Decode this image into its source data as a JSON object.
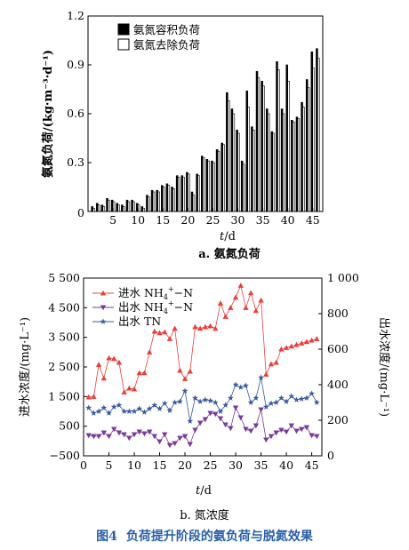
{
  "chart_data": [
    {
      "type": "bar",
      "caption": "a. 氨氮负荷",
      "xlabel_italic": "t",
      "xlabel_unit": "/d",
      "ylabel": "氨氮负荷/(kg·m⁻³·d⁻¹)",
      "ylim": [
        0,
        1.2
      ],
      "yticks": [
        0,
        0.3,
        0.6,
        0.9,
        1.2
      ],
      "yticklabels": [
        "0",
        "0.3",
        "0.6",
        "0.9",
        "1.2"
      ],
      "xlim": [
        0,
        47
      ],
      "xticks": [
        5,
        10,
        15,
        20,
        25,
        30,
        35,
        40,
        45
      ],
      "origin_label": "0",
      "legend_position": "top-left",
      "x": [
        1,
        2,
        3,
        4,
        5,
        6,
        7,
        8,
        9,
        10,
        11,
        12,
        13,
        14,
        15,
        16,
        17,
        18,
        19,
        20,
        21,
        22,
        23,
        24,
        25,
        26,
        27,
        28,
        29,
        30,
        31,
        32,
        33,
        34,
        35,
        36,
        37,
        38,
        39,
        40,
        41,
        42,
        43,
        44,
        45,
        46
      ],
      "series": [
        {
          "name": "氨氮容积负荷",
          "color": "#000000",
          "values": [
            0.03,
            0.05,
            0.04,
            0.08,
            0.07,
            0.05,
            0.04,
            0.07,
            0.07,
            0.05,
            0.03,
            0.1,
            0.13,
            0.13,
            0.16,
            0.17,
            0.15,
            0.22,
            0.22,
            0.24,
            0.12,
            0.23,
            0.34,
            0.32,
            0.31,
            0.38,
            0.42,
            0.73,
            0.63,
            0.5,
            0.31,
            0.74,
            0.52,
            0.86,
            0.8,
            0.63,
            0.49,
            0.92,
            0.63,
            0.9,
            0.56,
            0.58,
            0.67,
            0.81,
            0.98,
            1.0
          ]
        },
        {
          "name": "氨氮去除负荷",
          "color": "#ffffff",
          "values": [
            0.02,
            0.04,
            0.03,
            0.07,
            0.06,
            0.04,
            0.03,
            0.06,
            0.06,
            0.04,
            0.02,
            0.09,
            0.12,
            0.12,
            0.15,
            0.16,
            0.14,
            0.21,
            0.21,
            0.23,
            0.1,
            0.22,
            0.33,
            0.31,
            0.3,
            0.37,
            0.41,
            0.68,
            0.6,
            0.48,
            0.29,
            0.64,
            0.5,
            0.82,
            0.77,
            0.6,
            0.48,
            0.87,
            0.6,
            0.8,
            0.55,
            0.57,
            0.64,
            0.76,
            0.88,
            0.94
          ]
        }
      ]
    },
    {
      "type": "line",
      "caption": "b. 氮浓度",
      "xlabel_italic": "t",
      "xlabel_unit": "/d",
      "ylabel": "进水浓度/(mg·L⁻¹)",
      "y2label": "出水浓度/(mg·L⁻¹)",
      "ylim": [
        -500,
        5500
      ],
      "yticks": [
        -500,
        500,
        1500,
        2500,
        3500,
        4500,
        5500
      ],
      "yticklabels": [
        "−500",
        "500",
        "1 500",
        "2 500",
        "3 500",
        "4 500",
        "5 500"
      ],
      "y2lim": [
        0,
        1000
      ],
      "y2ticks": [
        0,
        200,
        400,
        600,
        800,
        1000
      ],
      "y2ticklabels": [
        "0",
        "200",
        "400",
        "600",
        "800",
        "1 000"
      ],
      "xlim": [
        0,
        47
      ],
      "xticks": [
        0,
        5,
        10,
        15,
        20,
        25,
        30,
        35,
        40,
        45
      ],
      "legend_position": "top-left",
      "x": [
        1,
        2,
        3,
        4,
        5,
        6,
        7,
        8,
        9,
        10,
        11,
        12,
        13,
        14,
        15,
        16,
        17,
        18,
        19,
        20,
        21,
        22,
        23,
        24,
        25,
        26,
        27,
        28,
        29,
        30,
        31,
        32,
        33,
        34,
        35,
        36,
        37,
        38,
        39,
        40,
        41,
        42,
        43,
        44,
        45,
        46
      ],
      "series": [
        {
          "name_main": "进水 NH",
          "name_sub": "4",
          "name_sup": "+",
          "name_tail": "−N",
          "axis": "left",
          "marker": "triangle-up",
          "color": "#e8403a",
          "values": [
            1480,
            1500,
            2580,
            2120,
            2800,
            2780,
            2650,
            1650,
            1780,
            1750,
            2300,
            2300,
            3000,
            3700,
            3650,
            3680,
            3450,
            3800,
            2380,
            2100,
            2350,
            3850,
            3800,
            3850,
            3880,
            3800,
            4650,
            4200,
            4500,
            4850,
            5250,
            4500,
            5000,
            4400,
            4750,
            2250,
            2600,
            2650,
            3100,
            3150,
            3200,
            3250,
            3300,
            3350,
            3400,
            3450
          ]
        },
        {
          "name_main": "出水 NH",
          "name_sub": "4",
          "name_sup": "+",
          "name_tail": "−N",
          "axis": "right",
          "marker": "triangle-down",
          "color": "#7a3a9a",
          "values": [
            115,
            110,
            110,
            130,
            110,
            150,
            130,
            120,
            100,
            120,
            135,
            125,
            135,
            110,
            80,
            120,
            60,
            70,
            100,
            110,
            65,
            145,
            185,
            205,
            240,
            235,
            210,
            175,
            155,
            270,
            215,
            150,
            140,
            170,
            260,
            90,
            110,
            130,
            145,
            135,
            170,
            140,
            150,
            160,
            115,
            110
          ]
        },
        {
          "name": "出水 TN",
          "axis": "right",
          "marker": "star",
          "color": "#3a5aa0",
          "values": [
            270,
            240,
            250,
            270,
            240,
            275,
            285,
            250,
            250,
            250,
            265,
            245,
            265,
            285,
            265,
            295,
            255,
            300,
            305,
            365,
            195,
            325,
            305,
            315,
            310,
            300,
            250,
            285,
            325,
            400,
            385,
            395,
            300,
            325,
            440,
            275,
            295,
            300,
            325,
            305,
            335,
            315,
            320,
            325,
            350,
            300
          ]
        }
      ]
    }
  ],
  "figure": {
    "title_num": "图4",
    "title_text": "负荷提升阶段的氨负荷与脱氮效果"
  }
}
